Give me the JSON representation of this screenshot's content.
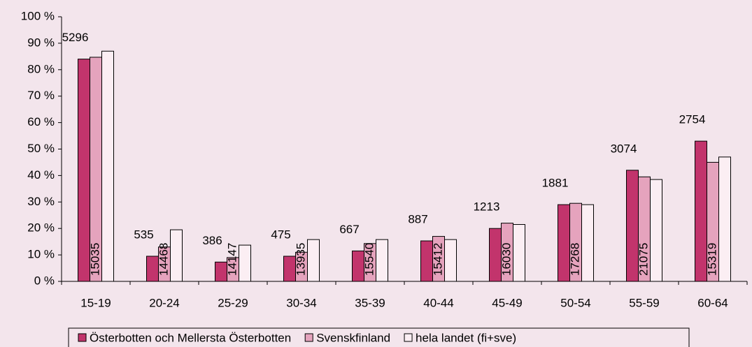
{
  "chart_data": {
    "type": "bar",
    "categories": [
      "15-19",
      "20-24",
      "25-29",
      "30-34",
      "35-39",
      "40-44",
      "45-49",
      "50-54",
      "55-59",
      "60-64"
    ],
    "series": [
      {
        "name": "Österbotten och Mellersta Österbotten",
        "color": "#c2346c",
        "values": [
          84,
          9.5,
          7.3,
          9.5,
          11.5,
          15.3,
          20,
          29,
          42,
          53
        ],
        "data_labels": [
          5296,
          535,
          386,
          475,
          667,
          887,
          1213,
          1881,
          3074,
          2754
        ]
      },
      {
        "name": "Svenskfinland",
        "color": "#e5a3bd",
        "values": [
          84.7,
          13,
          9,
          11,
          14.3,
          17,
          22,
          29.5,
          39.5,
          45
        ],
        "data_labels": [
          15035,
          14468,
          14147,
          13935,
          15540,
          15412,
          16030,
          17268,
          21075,
          15319
        ]
      },
      {
        "name": "hela landet (fi+sve)",
        "color": "#fbeef3",
        "values": [
          87,
          19.5,
          13.7,
          15.8,
          15.8,
          15.8,
          21.5,
          29,
          38.5,
          47
        ]
      }
    ],
    "ylim": [
      0,
      100
    ],
    "yticks": [
      {
        "value": 0,
        "label": "0 %"
      },
      {
        "value": 10,
        "label": "10 %"
      },
      {
        "value": 20,
        "label": "20 %"
      },
      {
        "value": 30,
        "label": "30 %"
      },
      {
        "value": 40,
        "label": "40 %"
      },
      {
        "value": 50,
        "label": "50 %"
      },
      {
        "value": 60,
        "label": "60 %"
      },
      {
        "value": 70,
        "label": "70 %"
      },
      {
        "value": 80,
        "label": "80 %"
      },
      {
        "value": 90,
        "label": "90 %"
      },
      {
        "value": 100,
        "label": "100 %"
      }
    ],
    "legend": "bottom"
  }
}
